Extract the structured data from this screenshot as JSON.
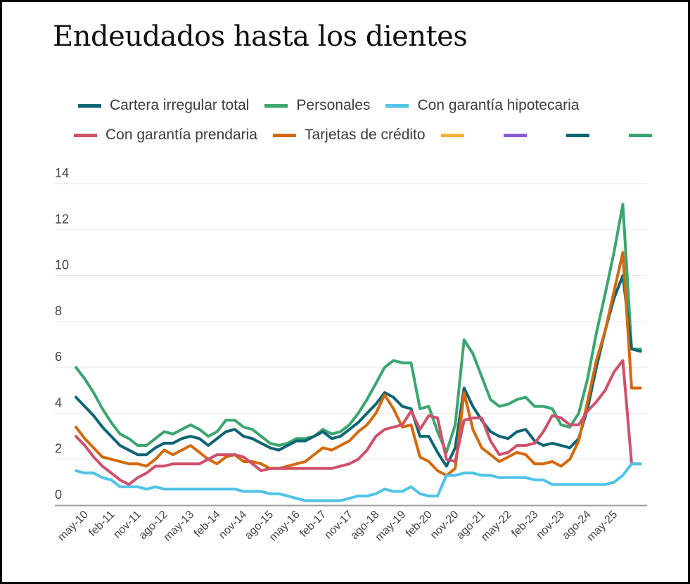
{
  "chart_data": {
    "type": "line",
    "title": "Endeudados hasta los dientes",
    "xlabel": "",
    "ylabel": "",
    "ylim": [
      0,
      14
    ],
    "yticks": [
      "0",
      "2",
      "4",
      "6",
      "8",
      "10",
      "12",
      "14"
    ],
    "grid": true,
    "legend_position": "top",
    "x_start": "may-10",
    "x_step_months": 3,
    "x_tick_labels": [
      "may-10",
      "feb-11",
      "nov-11",
      "ago-12",
      "may-13",
      "feb-14",
      "nov-14",
      "ago-15",
      "may-16",
      "feb-17",
      "nov-17",
      "ago-18",
      "may-19",
      "feb-20",
      "nov-20",
      "ago-21",
      "may-22",
      "feb-23",
      "nov-23",
      "ago-24",
      "may-25"
    ],
    "x_tick_every_months": 9,
    "total_months": 194,
    "legend": [
      {
        "name": "Cartera irregular total",
        "color": "#0b6474"
      },
      {
        "name": "Personales",
        "color": "#3aa66f"
      },
      {
        "name": "Con garantía hipotecaria",
        "color": "#4fc3e8"
      },
      {
        "name": "Con garantía prendaria",
        "color": "#d0506a"
      },
      {
        "name": "Tarjetas de crédito",
        "color": "#d4690a"
      },
      {
        "name": "",
        "color": "#f2b33a"
      },
      {
        "name": "",
        "color": "#8a5cd6"
      },
      {
        "name": "",
        "color": "#0b6474"
      },
      {
        "name": "",
        "color": "#3aa66f"
      }
    ],
    "series": [
      {
        "name": "Personales",
        "color": "#3aa66f",
        "values": [
          6.0,
          5.5,
          4.9,
          4.2,
          3.6,
          3.1,
          2.9,
          2.6,
          2.6,
          2.9,
          3.2,
          3.1,
          3.3,
          3.5,
          3.3,
          3.0,
          3.2,
          3.7,
          3.7,
          3.4,
          3.3,
          3.0,
          2.7,
          2.6,
          2.7,
          2.9,
          2.9,
          3.0,
          3.3,
          3.1,
          3.2,
          3.5,
          4.0,
          4.6,
          5.3,
          6.0,
          6.3,
          6.2,
          6.2,
          4.2,
          4.3,
          3.2,
          2.3,
          3.5,
          7.2,
          6.6,
          5.6,
          4.6,
          4.3,
          4.4,
          4.6,
          4.7,
          4.3,
          4.3,
          4.2,
          3.5,
          3.4,
          4.0,
          5.5,
          7.5,
          9.2,
          11.0,
          13.1,
          6.8,
          6.8
        ]
      },
      {
        "name": "Cartera irregular total",
        "color": "#0b6474",
        "values": [
          4.7,
          4.3,
          3.9,
          3.4,
          3.0,
          2.6,
          2.4,
          2.2,
          2.2,
          2.5,
          2.7,
          2.7,
          2.9,
          3.0,
          2.9,
          2.6,
          2.9,
          3.2,
          3.3,
          3.0,
          2.9,
          2.7,
          2.5,
          2.4,
          2.6,
          2.8,
          2.8,
          3.0,
          3.2,
          2.9,
          3.0,
          3.3,
          3.6,
          4.0,
          4.4,
          4.9,
          4.7,
          4.3,
          4.2,
          3.0,
          3.0,
          2.3,
          1.7,
          2.5,
          5.1,
          4.3,
          3.7,
          3.2,
          3.0,
          2.9,
          3.2,
          3.3,
          2.8,
          2.6,
          2.7,
          2.6,
          2.5,
          2.9,
          4.2,
          6.0,
          7.6,
          9.0,
          10.0,
          6.8,
          6.7
        ]
      },
      {
        "name": "Tarjetas de crédito",
        "color": "#d4690a",
        "values": [
          3.4,
          2.9,
          2.5,
          2.1,
          2.0,
          1.9,
          1.8,
          1.8,
          1.7,
          2.0,
          2.4,
          2.2,
          2.4,
          2.6,
          2.3,
          2.0,
          1.8,
          2.1,
          2.2,
          1.9,
          1.9,
          1.8,
          1.6,
          1.6,
          1.7,
          1.8,
          1.9,
          2.2,
          2.5,
          2.4,
          2.6,
          2.8,
          3.2,
          3.5,
          4.0,
          4.8,
          4.2,
          3.4,
          3.5,
          2.1,
          1.9,
          1.5,
          1.3,
          1.6,
          4.9,
          3.3,
          2.5,
          2.2,
          1.9,
          2.1,
          2.3,
          2.2,
          1.8,
          1.8,
          1.9,
          1.7,
          2.0,
          2.8,
          4.5,
          6.3,
          7.6,
          9.3,
          11.0,
          5.1,
          5.1
        ]
      },
      {
        "name": "Con garantía prendaria",
        "color": "#d0506a",
        "values": [
          3.0,
          2.6,
          2.1,
          1.7,
          1.4,
          1.1,
          0.9,
          1.2,
          1.4,
          1.7,
          1.7,
          1.8,
          1.8,
          1.8,
          1.8,
          2.0,
          2.2,
          2.2,
          2.2,
          2.1,
          1.8,
          1.5,
          1.6,
          1.6,
          1.6,
          1.6,
          1.6,
          1.6,
          1.6,
          1.6,
          1.7,
          1.8,
          2.0,
          2.4,
          3.0,
          3.3,
          3.4,
          3.5,
          4.1,
          3.3,
          3.9,
          3.8,
          2.0,
          1.9,
          3.7,
          3.8,
          3.8,
          2.8,
          2.2,
          2.3,
          2.6,
          2.6,
          2.7,
          3.2,
          3.9,
          3.8,
          3.5,
          3.5,
          4.1,
          4.5,
          5.0,
          5.8,
          6.3,
          1.8,
          1.8
        ]
      },
      {
        "name": "Con garantía hipotecaria",
        "color": "#4fc3e8",
        "values": [
          1.5,
          1.4,
          1.4,
          1.2,
          1.1,
          0.8,
          0.8,
          0.8,
          0.7,
          0.8,
          0.7,
          0.7,
          0.7,
          0.7,
          0.7,
          0.7,
          0.7,
          0.7,
          0.7,
          0.6,
          0.6,
          0.6,
          0.5,
          0.5,
          0.4,
          0.3,
          0.2,
          0.2,
          0.2,
          0.2,
          0.2,
          0.3,
          0.4,
          0.4,
          0.5,
          0.7,
          0.6,
          0.6,
          0.8,
          0.5,
          0.4,
          0.4,
          1.3,
          1.3,
          1.4,
          1.4,
          1.3,
          1.3,
          1.2,
          1.2,
          1.2,
          1.2,
          1.1,
          1.1,
          0.9,
          0.9,
          0.9,
          0.9,
          0.9,
          0.9,
          0.9,
          1.0,
          1.3,
          1.8,
          1.8
        ]
      }
    ]
  }
}
